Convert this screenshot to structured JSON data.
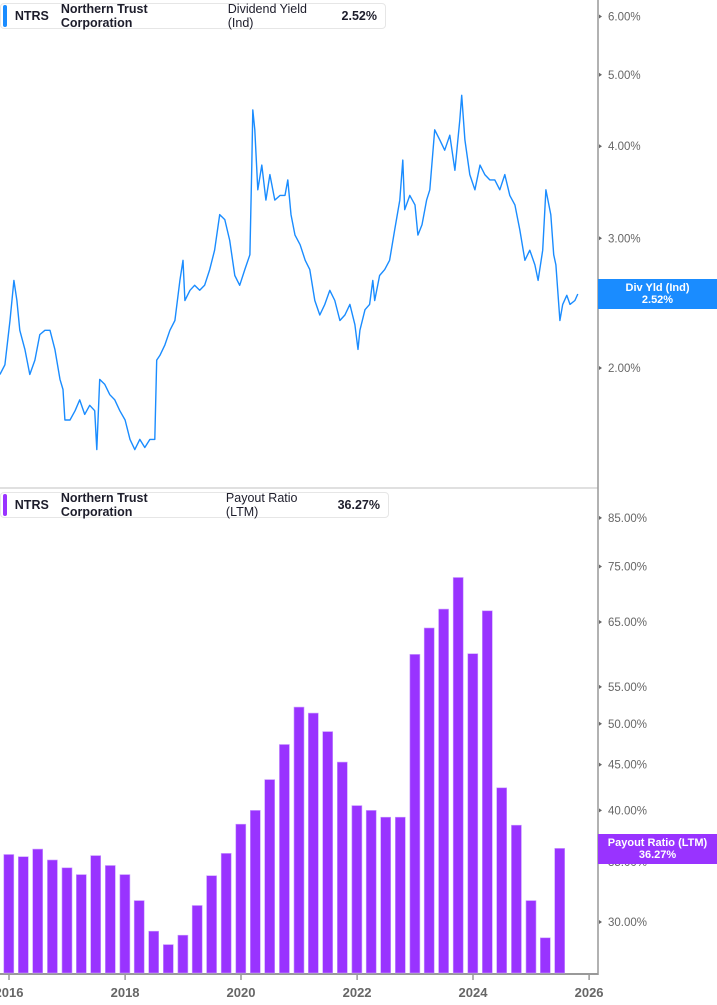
{
  "colors": {
    "yield": "#1a8cff",
    "payout": "#9933ff",
    "axis": "#999999",
    "text": "#666666"
  },
  "chart_data": [
    {
      "type": "line",
      "legend": {
        "ticker": "NTRS",
        "company": "Northern Trust Corporation",
        "metric": "Dividend Yield (Ind)",
        "value": "2.52%"
      },
      "flag": {
        "label": "Div Yld (Ind)",
        "value": "2.52%"
      },
      "yscale": "log",
      "ylim": [
        1.5,
        6.3
      ],
      "yticks": [
        {
          "v": 6,
          "label": "6.00%"
        },
        {
          "v": 5,
          "label": "5.00%"
        },
        {
          "v": 4,
          "label": "4.00%"
        },
        {
          "v": 3,
          "label": "3.00%"
        },
        {
          "v": 2,
          "label": "2.00%"
        }
      ],
      "grid": false,
      "series": [
        {
          "name": "Dividend Yield (Ind)",
          "points": [
            [
              "2015-11-05",
              1.96
            ],
            [
              "2015-12-06",
              2.02
            ],
            [
              "2016-01-07",
              2.32
            ],
            [
              "2016-02-01",
              2.63
            ],
            [
              "2016-02-20",
              2.47
            ],
            [
              "2016-03-09",
              2.25
            ],
            [
              "2016-04-10",
              2.12
            ],
            [
              "2016-05-11",
              1.96
            ],
            [
              "2016-06-12",
              2.05
            ],
            [
              "2016-07-13",
              2.22
            ],
            [
              "2016-08-14",
              2.25
            ],
            [
              "2016-09-15",
              2.25
            ],
            [
              "2016-10-16",
              2.12
            ],
            [
              "2016-11-17",
              1.93
            ],
            [
              "2016-12-06",
              1.87
            ],
            [
              "2016-12-18",
              1.7
            ],
            [
              "2017-01-19",
              1.7
            ],
            [
              "2017-02-20",
              1.75
            ],
            [
              "2017-03-21",
              1.81
            ],
            [
              "2017-04-22",
              1.73
            ],
            [
              "2017-05-23",
              1.78
            ],
            [
              "2017-06-24",
              1.75
            ],
            [
              "2017-07-07",
              1.55
            ],
            [
              "2017-07-25",
              1.93
            ],
            [
              "2017-08-26",
              1.9
            ],
            [
              "2017-09-27",
              1.84
            ],
            [
              "2017-10-28",
              1.81
            ],
            [
              "2017-11-29",
              1.75
            ],
            [
              "2018-01-01",
              1.7
            ],
            [
              "2018-02-01",
              1.6
            ],
            [
              "2018-03-03",
              1.55
            ],
            [
              "2018-04-04",
              1.6
            ],
            [
              "2018-05-05",
              1.56
            ],
            [
              "2018-06-06",
              1.6
            ],
            [
              "2018-07-07",
              1.6
            ],
            [
              "2018-07-19",
              2.05
            ],
            [
              "2018-08-08",
              2.08
            ],
            [
              "2018-09-09",
              2.15
            ],
            [
              "2018-10-10",
              2.25
            ],
            [
              "2018-11-11",
              2.32
            ],
            [
              "2018-12-12",
              2.63
            ],
            [
              "2019-01-01",
              2.8
            ],
            [
              "2019-01-13",
              2.47
            ],
            [
              "2019-02-14",
              2.55
            ],
            [
              "2019-03-15",
              2.59
            ],
            [
              "2019-04-16",
              2.55
            ],
            [
              "2019-05-17",
              2.59
            ],
            [
              "2019-06-18",
              2.72
            ],
            [
              "2019-07-19",
              2.89
            ],
            [
              "2019-08-20",
              3.23
            ],
            [
              "2019-09-21",
              3.18
            ],
            [
              "2019-10-22",
              2.98
            ],
            [
              "2019-11-23",
              2.67
            ],
            [
              "2019-12-24",
              2.59
            ],
            [
              "2020-01-25",
              2.72
            ],
            [
              "2020-02-26",
              2.85
            ],
            [
              "2020-03-09",
              3.77
            ],
            [
              "2020-03-15",
              4.48
            ],
            [
              "2020-03-28",
              4.21
            ],
            [
              "2020-04-16",
              3.49
            ],
            [
              "2020-05-11",
              3.77
            ],
            [
              "2020-06-06",
              3.38
            ],
            [
              "2020-07-01",
              3.66
            ],
            [
              "2020-08-01",
              3.38
            ],
            [
              "2020-09-03",
              3.43
            ],
            [
              "2020-10-04",
              3.43
            ],
            [
              "2020-10-22",
              3.6
            ],
            [
              "2020-11-11",
              3.23
            ],
            [
              "2020-12-06",
              3.03
            ],
            [
              "2021-01-07",
              2.94
            ],
            [
              "2021-02-08",
              2.8
            ],
            [
              "2021-03-09",
              2.72
            ],
            [
              "2021-04-10",
              2.47
            ],
            [
              "2021-05-11",
              2.36
            ],
            [
              "2021-06-12",
              2.44
            ],
            [
              "2021-07-13",
              2.55
            ],
            [
              "2021-08-14",
              2.47
            ],
            [
              "2021-09-15",
              2.32
            ],
            [
              "2021-10-16",
              2.36
            ],
            [
              "2021-11-17",
              2.44
            ],
            [
              "2021-12-18",
              2.29
            ],
            [
              "2022-01-07",
              2.12
            ],
            [
              "2022-01-19",
              2.25
            ],
            [
              "2022-02-20",
              2.4
            ],
            [
              "2022-03-21",
              2.44
            ],
            [
              "2022-04-10",
              2.63
            ],
            [
              "2022-04-22",
              2.47
            ],
            [
              "2022-05-23",
              2.67
            ],
            [
              "2022-06-24",
              2.72
            ],
            [
              "2022-07-25",
              2.8
            ],
            [
              "2022-08-26",
              3.08
            ],
            [
              "2022-09-27",
              3.38
            ],
            [
              "2022-10-16",
              3.83
            ],
            [
              "2022-10-28",
              3.28
            ],
            [
              "2022-11-29",
              3.43
            ],
            [
              "2023-01-01",
              3.33
            ],
            [
              "2023-01-19",
              3.03
            ],
            [
              "2023-02-14",
              3.13
            ],
            [
              "2023-03-15",
              3.38
            ],
            [
              "2023-04-04",
              3.49
            ],
            [
              "2023-05-05",
              4.21
            ],
            [
              "2023-06-06",
              4.08
            ],
            [
              "2023-07-07",
              3.95
            ],
            [
              "2023-08-08",
              4.14
            ],
            [
              "2023-09-09",
              3.71
            ],
            [
              "2023-10-10",
              4.34
            ],
            [
              "2023-10-22",
              4.69
            ],
            [
              "2023-11-11",
              4.08
            ],
            [
              "2023-12-12",
              3.66
            ],
            [
              "2024-01-13",
              3.49
            ],
            [
              "2024-02-14",
              3.77
            ],
            [
              "2024-03-15",
              3.66
            ],
            [
              "2024-04-16",
              3.6
            ],
            [
              "2024-05-17",
              3.6
            ],
            [
              "2024-06-18",
              3.49
            ],
            [
              "2024-07-19",
              3.66
            ],
            [
              "2024-08-20",
              3.43
            ],
            [
              "2024-09-21",
              3.33
            ],
            [
              "2024-10-22",
              3.08
            ],
            [
              "2024-11-23",
              2.8
            ],
            [
              "2024-12-24",
              2.89
            ],
            [
              "2025-01-25",
              2.76
            ],
            [
              "2025-02-14",
              2.63
            ],
            [
              "2025-03-15",
              2.89
            ],
            [
              "2025-04-04",
              3.49
            ],
            [
              "2025-05-05",
              3.23
            ],
            [
              "2025-05-23",
              2.85
            ],
            [
              "2025-06-06",
              2.76
            ],
            [
              "2025-07-01",
              2.32
            ],
            [
              "2025-07-19",
              2.44
            ],
            [
              "2025-08-14",
              2.51
            ],
            [
              "2025-09-03",
              2.44
            ],
            [
              "2025-10-04",
              2.47
            ],
            [
              "2025-10-22",
              2.52
            ]
          ]
        }
      ]
    },
    {
      "type": "bar",
      "legend": {
        "ticker": "NTRS",
        "company": "Northern Trust Corporation",
        "metric": "Payout Ratio (LTM)",
        "value": "36.27%"
      },
      "flag": {
        "label": "Payout Ratio (LTM)",
        "value": "36.27%"
      },
      "yscale": "log",
      "ylim": [
        27,
        90
      ],
      "yticks": [
        {
          "v": 85,
          "label": "85.00%"
        },
        {
          "v": 75,
          "label": "75.00%"
        },
        {
          "v": 65,
          "label": "65.00%"
        },
        {
          "v": 55,
          "label": "55.00%"
        },
        {
          "v": 50,
          "label": "50.00%"
        },
        {
          "v": 45,
          "label": "45.00%"
        },
        {
          "v": 40,
          "label": "40.00%"
        },
        {
          "v": 35,
          "label": "35.00%"
        },
        {
          "v": 30,
          "label": "30.00%"
        }
      ],
      "xticks": [
        "2016",
        "2018",
        "2020",
        "2022",
        "2024",
        "2026"
      ],
      "grid": false,
      "series": [
        {
          "name": "Payout Ratio (LTM)",
          "points": [
            [
              "2015-12-31",
              35.7
            ],
            [
              "2016-03-31",
              35.5
            ],
            [
              "2016-06-30",
              36.2
            ],
            [
              "2016-09-30",
              35.2
            ],
            [
              "2016-12-31",
              34.5
            ],
            [
              "2017-03-31",
              33.9
            ],
            [
              "2017-06-30",
              35.6
            ],
            [
              "2017-09-30",
              34.7
            ],
            [
              "2017-12-31",
              33.9
            ],
            [
              "2018-03-31",
              31.7
            ],
            [
              "2018-06-30",
              29.3
            ],
            [
              "2018-09-30",
              28.3
            ],
            [
              "2018-12-31",
              29.0
            ],
            [
              "2019-03-31",
              31.3
            ],
            [
              "2019-06-30",
              33.8
            ],
            [
              "2019-09-30",
              35.8
            ],
            [
              "2019-12-31",
              38.6
            ],
            [
              "2020-03-31",
              40.0
            ],
            [
              "2020-06-30",
              43.3
            ],
            [
              "2020-09-30",
              47.4
            ],
            [
              "2020-12-31",
              52.2
            ],
            [
              "2021-03-31",
              51.4
            ],
            [
              "2021-06-30",
              49.0
            ],
            [
              "2021-09-30",
              45.3
            ],
            [
              "2021-12-31",
              40.5
            ],
            [
              "2022-03-31",
              40.0
            ],
            [
              "2022-06-30",
              39.3
            ],
            [
              "2022-09-30",
              39.3
            ],
            [
              "2022-12-31",
              59.8
            ],
            [
              "2023-03-31",
              64.0
            ],
            [
              "2023-06-30",
              67.2
            ],
            [
              "2023-09-30",
              72.9
            ],
            [
              "2023-12-31",
              59.9
            ],
            [
              "2024-03-31",
              66.9
            ],
            [
              "2024-06-30",
              42.4
            ],
            [
              "2024-09-30",
              38.5
            ],
            [
              "2024-12-31",
              31.7
            ],
            [
              "2025-03-31",
              28.8
            ],
            [
              "2025-06-30",
              36.27
            ]
          ]
        }
      ]
    }
  ]
}
